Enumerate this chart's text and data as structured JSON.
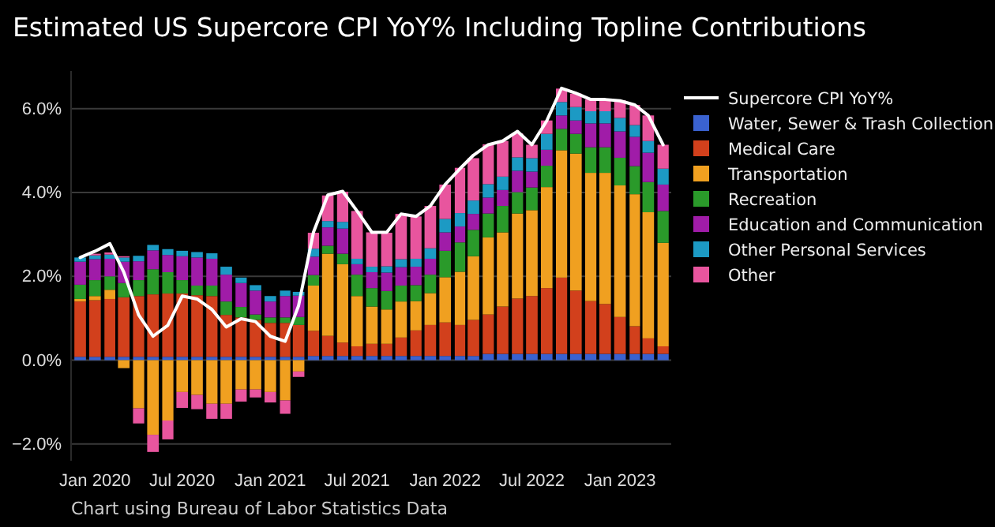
{
  "chart_data": {
    "type": "bar",
    "title": "Estimated US Supercore CPI YoY% Including Topline Contributions",
    "stacked": true,
    "legend": "right",
    "grid": "y",
    "x": [
      "2019-12",
      "2020-01",
      "2020-02",
      "2020-03",
      "2020-04",
      "2020-05",
      "2020-06",
      "2020-07",
      "2020-08",
      "2020-09",
      "2020-10",
      "2020-11",
      "2020-12",
      "2021-01",
      "2021-02",
      "2021-03",
      "2021-04",
      "2021-05",
      "2021-06",
      "2021-07",
      "2021-08",
      "2021-09",
      "2021-10",
      "2021-11",
      "2021-12",
      "2022-01",
      "2022-02",
      "2022-03",
      "2022-04",
      "2022-05",
      "2022-06",
      "2022-07",
      "2022-08",
      "2022-09",
      "2022-10",
      "2022-11",
      "2022-12",
      "2023-01",
      "2023-02",
      "2023-03",
      "2023-04"
    ],
    "xlim": [
      "2019-11-12",
      "2023-04-18"
    ],
    "xticks": [
      {
        "value": "2020-01",
        "label": "Jan 2020"
      },
      {
        "value": "2020-07",
        "label": "Jul 2020"
      },
      {
        "value": "2021-01",
        "label": "Jan 2021"
      },
      {
        "value": "2021-07",
        "label": "Jul 2021"
      },
      {
        "value": "2022-01",
        "label": "Jan 2022"
      },
      {
        "value": "2022-07",
        "label": "Jul 2022"
      },
      {
        "value": "2023-01",
        "label": "Jan 2023"
      }
    ],
    "ylim": [
      -2.4,
      6.9
    ],
    "yticks": [
      {
        "value": -2,
        "label": "−2.0%"
      },
      {
        "value": 0,
        "label": "0.0%"
      },
      {
        "value": 2,
        "label": "2.0%"
      },
      {
        "value": 4,
        "label": "4.0%"
      },
      {
        "value": 6,
        "label": "6.0%"
      }
    ],
    "series": [
      {
        "name": "Supercore CPI YoY%",
        "type": "line",
        "color": "#ffffff",
        "values": [
          2.45,
          2.6,
          2.78,
          2.1,
          1.08,
          0.57,
          0.83,
          1.53,
          1.46,
          1.21,
          0.79,
          0.99,
          0.92,
          0.57,
          0.45,
          1.3,
          3.05,
          3.94,
          4.03,
          3.56,
          3.05,
          3.05,
          3.49,
          3.43,
          3.68,
          4.19,
          4.57,
          4.89,
          5.14,
          5.23,
          5.46,
          5.14,
          5.71,
          6.49,
          6.37,
          6.22,
          6.22,
          6.19,
          6.09,
          5.84,
          5.14
        ]
      },
      {
        "name": "Water, Sewer & Trash Collection",
        "color": "#3a62d0",
        "values": [
          0.08,
          0.08,
          0.08,
          0.08,
          0.08,
          0.08,
          0.08,
          0.08,
          0.08,
          0.08,
          0.08,
          0.08,
          0.08,
          0.08,
          0.08,
          0.08,
          0.1,
          0.1,
          0.1,
          0.1,
          0.1,
          0.1,
          0.1,
          0.1,
          0.1,
          0.1,
          0.1,
          0.1,
          0.15,
          0.15,
          0.15,
          0.15,
          0.15,
          0.15,
          0.15,
          0.15,
          0.15,
          0.15,
          0.15,
          0.15,
          0.15
        ]
      },
      {
        "name": "Medical Care",
        "color": "#d2401c",
        "values": [
          1.32,
          1.35,
          1.38,
          1.42,
          1.45,
          1.49,
          1.51,
          1.51,
          1.47,
          1.45,
          1.0,
          0.94,
          0.88,
          0.81,
          0.81,
          0.76,
          0.6,
          0.48,
          0.32,
          0.23,
          0.29,
          0.29,
          0.44,
          0.61,
          0.74,
          0.8,
          0.74,
          0.86,
          0.94,
          1.13,
          1.32,
          1.38,
          1.57,
          1.82,
          1.51,
          1.26,
          1.19,
          0.88,
          0.66,
          0.37,
          0.18
        ]
      },
      {
        "name": "Transportation",
        "color": "#f0a020",
        "values": [
          0.06,
          0.1,
          0.22,
          -0.19,
          -1.15,
          -1.78,
          -1.44,
          -0.76,
          -0.83,
          -1.04,
          -1.04,
          -0.7,
          -0.7,
          -0.76,
          -0.96,
          -0.27,
          1.08,
          1.96,
          1.87,
          1.2,
          0.89,
          0.82,
          0.86,
          0.7,
          0.76,
          1.08,
          1.27,
          1.52,
          1.84,
          1.77,
          2.03,
          2.05,
          2.41,
          3.04,
          3.27,
          3.06,
          3.13,
          3.14,
          3.15,
          3.01,
          2.47
        ]
      },
      {
        "name": "Recreation",
        "color": "#2a9a2a",
        "values": [
          0.34,
          0.38,
          0.32,
          0.34,
          0.38,
          0.6,
          0.51,
          0.32,
          0.23,
          0.25,
          0.32,
          0.25,
          0.13,
          0.13,
          0.13,
          0.19,
          0.25,
          0.19,
          0.25,
          0.51,
          0.44,
          0.44,
          0.38,
          0.38,
          0.44,
          0.63,
          0.7,
          0.63,
          0.57,
          0.63,
          0.51,
          0.54,
          0.51,
          0.51,
          0.47,
          0.61,
          0.61,
          0.66,
          0.67,
          0.72,
          0.76
        ]
      },
      {
        "name": "Education and Communication",
        "color": "#a01ca8",
        "values": [
          0.55,
          0.5,
          0.42,
          0.51,
          0.45,
          0.45,
          0.41,
          0.57,
          0.67,
          0.64,
          0.64,
          0.57,
          0.57,
          0.38,
          0.51,
          0.51,
          0.44,
          0.44,
          0.6,
          0.25,
          0.38,
          0.44,
          0.44,
          0.44,
          0.38,
          0.44,
          0.38,
          0.38,
          0.38,
          0.38,
          0.51,
          0.38,
          0.38,
          0.32,
          0.32,
          0.57,
          0.57,
          0.63,
          0.7,
          0.7,
          0.63
        ]
      },
      {
        "name": "Other Personal Services",
        "color": "#1c9ac4",
        "values": [
          0.1,
          0.09,
          0.1,
          0.1,
          0.13,
          0.13,
          0.14,
          0.13,
          0.13,
          0.13,
          0.19,
          0.13,
          0.13,
          0.13,
          0.13,
          0.09,
          0.19,
          0.15,
          0.16,
          0.13,
          0.13,
          0.15,
          0.19,
          0.19,
          0.25,
          0.32,
          0.32,
          0.32,
          0.32,
          0.32,
          0.32,
          0.32,
          0.38,
          0.32,
          0.32,
          0.29,
          0.29,
          0.32,
          0.28,
          0.28,
          0.38
        ]
      },
      {
        "name": "Other",
        "color": "#e8559e",
        "values": [
          null,
          0.04,
          0.05,
          0.03,
          -0.36,
          -0.41,
          -0.45,
          -0.38,
          -0.34,
          -0.36,
          -0.36,
          -0.29,
          -0.19,
          -0.25,
          -0.32,
          -0.13,
          0.38,
          0.61,
          0.72,
          1.14,
          0.82,
          0.8,
          1.08,
          1.01,
          1.01,
          0.82,
          1.08,
          1.01,
          0.95,
          0.85,
          0.57,
          0.32,
          0.32,
          0.32,
          0.32,
          0.28,
          0.28,
          0.42,
          0.48,
          0.61,
          0.57
        ]
      }
    ],
    "annotations": [
      "Chart using Bureau of Labor Statistics Data"
    ]
  }
}
